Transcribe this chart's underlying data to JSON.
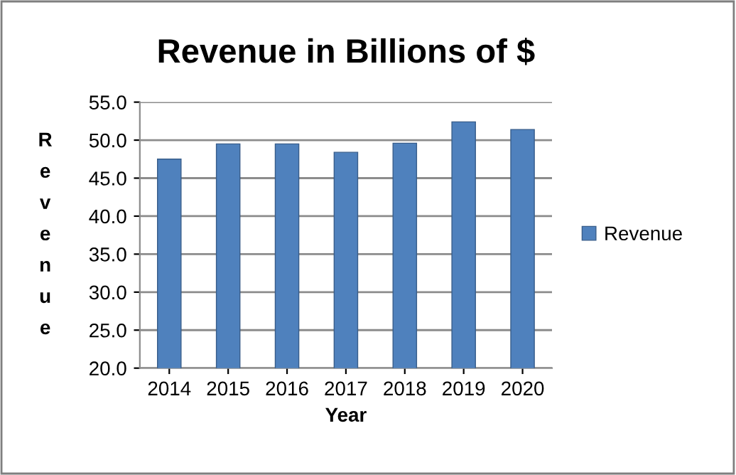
{
  "chart_data": {
    "type": "bar",
    "title": "Revenue in Billions of $",
    "xlabel": "Year",
    "ylabel": "Revenue",
    "categories": [
      "2014",
      "2015",
      "2016",
      "2017",
      "2018",
      "2019",
      "2020"
    ],
    "series": [
      {
        "name": "Revenue",
        "color": "#4f81bd",
        "values": [
          47.5,
          49.5,
          49.5,
          48.4,
          49.6,
          52.4,
          51.4
        ]
      }
    ],
    "ylim": [
      20,
      55
    ],
    "yticks": [
      {
        "value": 20,
        "label": "20.0"
      },
      {
        "value": 25,
        "label": "25.0"
      },
      {
        "value": 30,
        "label": "30.0"
      },
      {
        "value": 35,
        "label": "35.0"
      },
      {
        "value": 40,
        "label": "40.0"
      },
      {
        "value": 45,
        "label": "45.0"
      },
      {
        "value": 50,
        "label": "50.0"
      },
      {
        "value": 55,
        "label": "55.0"
      }
    ],
    "grid": "y",
    "legend": "right"
  }
}
